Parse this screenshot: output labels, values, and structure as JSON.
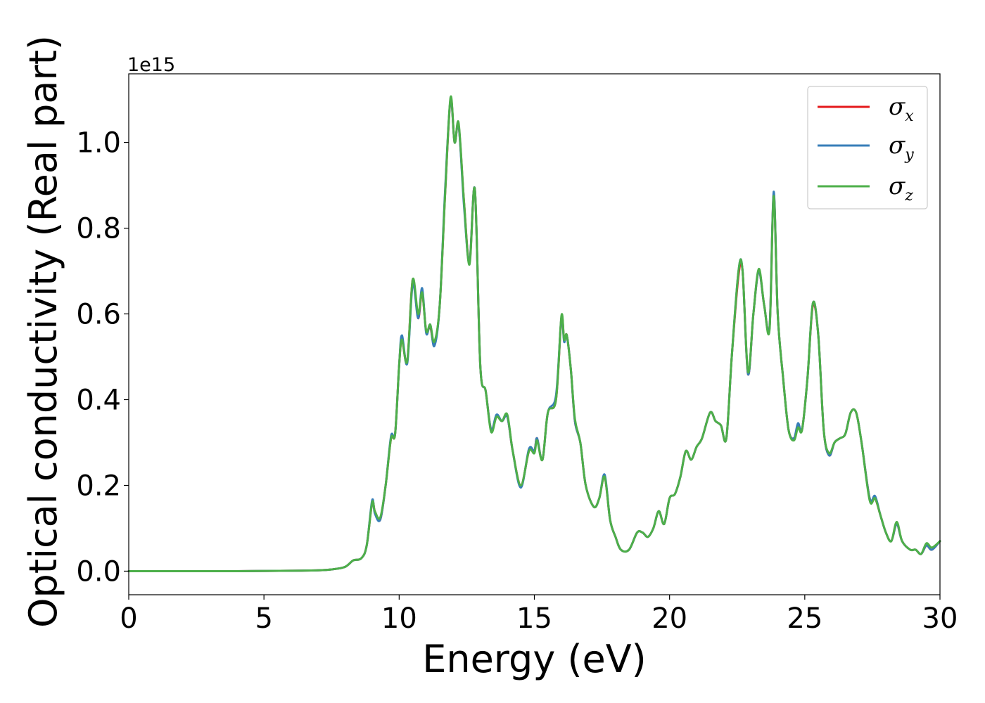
{
  "chart_data": {
    "type": "line",
    "xlabel": "Energy (eV)",
    "ylabel": "Optical conductivity (Real part)",
    "y_offset_label": "1e15",
    "xlim": [
      0,
      30
    ],
    "ylim": [
      -0.055,
      1.16
    ],
    "x_ticks": [
      0,
      5,
      10,
      15,
      20,
      25,
      30
    ],
    "x_tick_labels": [
      "0",
      "5",
      "10",
      "15",
      "20",
      "25",
      "30"
    ],
    "y_ticks": [
      0.0,
      0.2,
      0.4,
      0.6,
      0.8,
      1.0
    ],
    "y_tick_labels": [
      "0.0",
      "0.2",
      "0.4",
      "0.6",
      "0.8",
      "1.0"
    ],
    "grid": false,
    "legend_position": "top-right",
    "x": [
      0,
      2,
      4,
      6,
      7,
      7.5,
      8,
      8.3,
      8.6,
      8.8,
      9.0,
      9.1,
      9.3,
      9.5,
      9.7,
      9.85,
      10.0,
      10.1,
      10.3,
      10.5,
      10.7,
      10.85,
      11.0,
      11.15,
      11.3,
      11.5,
      11.7,
      11.9,
      12.05,
      12.2,
      12.4,
      12.6,
      12.8,
      13.0,
      13.2,
      13.4,
      13.6,
      13.8,
      14.0,
      14.2,
      14.5,
      14.8,
      15.0,
      15.1,
      15.3,
      15.5,
      15.8,
      16.0,
      16.1,
      16.2,
      16.35,
      16.5,
      16.7,
      16.9,
      17.2,
      17.4,
      17.6,
      17.8,
      18.0,
      18.2,
      18.5,
      18.8,
      19.0,
      19.2,
      19.4,
      19.6,
      19.8,
      20.0,
      20.2,
      20.4,
      20.6,
      20.8,
      21.0,
      21.2,
      21.5,
      21.7,
      21.9,
      22.1,
      22.3,
      22.55,
      22.7,
      22.9,
      23.1,
      23.3,
      23.5,
      23.7,
      23.85,
      24.0,
      24.2,
      24.4,
      24.6,
      24.75,
      24.9,
      25.1,
      25.3,
      25.5,
      25.7,
      25.9,
      26.1,
      26.3,
      26.5,
      26.7,
      26.9,
      27.1,
      27.4,
      27.6,
      27.8,
      28.0,
      28.2,
      28.4,
      28.6,
      28.9,
      29.1,
      29.3,
      29.5,
      29.7,
      30.0
    ],
    "series": [
      {
        "name": "σx",
        "color": "#e41a1c",
        "values": [
          0.0,
          0.0,
          0.0,
          0.001,
          0.002,
          0.004,
          0.01,
          0.025,
          0.03,
          0.06,
          0.16,
          0.14,
          0.12,
          0.2,
          0.31,
          0.32,
          0.48,
          0.54,
          0.49,
          0.68,
          0.59,
          0.65,
          0.56,
          0.57,
          0.53,
          0.62,
          0.88,
          1.1,
          1.0,
          1.04,
          0.86,
          0.72,
          0.89,
          0.48,
          0.42,
          0.33,
          0.36,
          0.35,
          0.36,
          0.28,
          0.2,
          0.28,
          0.28,
          0.31,
          0.26,
          0.37,
          0.4,
          0.59,
          0.54,
          0.55,
          0.47,
          0.35,
          0.3,
          0.2,
          0.15,
          0.17,
          0.22,
          0.12,
          0.08,
          0.05,
          0.05,
          0.09,
          0.09,
          0.08,
          0.1,
          0.14,
          0.11,
          0.17,
          0.18,
          0.22,
          0.28,
          0.26,
          0.29,
          0.31,
          0.37,
          0.35,
          0.34,
          0.31,
          0.5,
          0.69,
          0.7,
          0.46,
          0.6,
          0.7,
          0.62,
          0.57,
          0.88,
          0.6,
          0.45,
          0.33,
          0.31,
          0.34,
          0.33,
          0.45,
          0.62,
          0.55,
          0.33,
          0.27,
          0.3,
          0.31,
          0.32,
          0.37,
          0.37,
          0.3,
          0.17,
          0.17,
          0.13,
          0.09,
          0.07,
          0.11,
          0.07,
          0.05,
          0.05,
          0.04,
          0.06,
          0.05,
          0.07
        ]
      },
      {
        "name": "σy",
        "color": "#377eb8",
        "values": [
          0.0,
          0.0,
          0.0,
          0.001,
          0.002,
          0.004,
          0.01,
          0.025,
          0.03,
          0.06,
          0.165,
          0.135,
          0.12,
          0.2,
          0.315,
          0.32,
          0.48,
          0.55,
          0.485,
          0.67,
          0.59,
          0.66,
          0.555,
          0.575,
          0.525,
          0.62,
          0.89,
          1.1,
          1.0,
          1.04,
          0.85,
          0.72,
          0.89,
          0.48,
          0.42,
          0.33,
          0.365,
          0.35,
          0.36,
          0.28,
          0.195,
          0.285,
          0.28,
          0.31,
          0.26,
          0.37,
          0.41,
          0.59,
          0.535,
          0.55,
          0.47,
          0.35,
          0.3,
          0.2,
          0.15,
          0.17,
          0.225,
          0.12,
          0.08,
          0.05,
          0.05,
          0.09,
          0.09,
          0.08,
          0.1,
          0.14,
          0.11,
          0.17,
          0.18,
          0.22,
          0.28,
          0.26,
          0.29,
          0.31,
          0.37,
          0.35,
          0.34,
          0.31,
          0.5,
          0.7,
          0.7,
          0.46,
          0.6,
          0.7,
          0.62,
          0.57,
          0.885,
          0.6,
          0.45,
          0.33,
          0.31,
          0.345,
          0.33,
          0.45,
          0.625,
          0.55,
          0.33,
          0.27,
          0.3,
          0.31,
          0.32,
          0.37,
          0.37,
          0.3,
          0.17,
          0.175,
          0.13,
          0.09,
          0.07,
          0.11,
          0.07,
          0.05,
          0.05,
          0.04,
          0.06,
          0.05,
          0.07
        ]
      },
      {
        "name": "σz",
        "color": "#4daf4a",
        "values": [
          0.0,
          0.0,
          0.0,
          0.001,
          0.002,
          0.004,
          0.01,
          0.025,
          0.03,
          0.06,
          0.16,
          0.14,
          0.125,
          0.2,
          0.31,
          0.32,
          0.48,
          0.54,
          0.49,
          0.68,
          0.6,
          0.65,
          0.56,
          0.575,
          0.535,
          0.62,
          0.88,
          1.105,
          1.0,
          1.045,
          0.86,
          0.715,
          0.89,
          0.48,
          0.42,
          0.325,
          0.36,
          0.35,
          0.365,
          0.28,
          0.2,
          0.28,
          0.275,
          0.305,
          0.26,
          0.37,
          0.4,
          0.595,
          0.54,
          0.55,
          0.47,
          0.355,
          0.3,
          0.2,
          0.15,
          0.17,
          0.22,
          0.12,
          0.08,
          0.05,
          0.05,
          0.09,
          0.09,
          0.08,
          0.1,
          0.14,
          0.11,
          0.17,
          0.18,
          0.22,
          0.28,
          0.26,
          0.29,
          0.31,
          0.37,
          0.35,
          0.34,
          0.31,
          0.5,
          0.7,
          0.7,
          0.465,
          0.6,
          0.705,
          0.62,
          0.565,
          0.875,
          0.6,
          0.45,
          0.33,
          0.305,
          0.335,
          0.33,
          0.45,
          0.625,
          0.55,
          0.33,
          0.275,
          0.3,
          0.31,
          0.32,
          0.37,
          0.37,
          0.3,
          0.165,
          0.17,
          0.13,
          0.09,
          0.07,
          0.115,
          0.07,
          0.05,
          0.05,
          0.04,
          0.065,
          0.055,
          0.07
        ]
      }
    ]
  },
  "legend": {
    "items": [
      {
        "base": "σ",
        "sub": "x"
      },
      {
        "base": "σ",
        "sub": "y"
      },
      {
        "base": "σ",
        "sub": "z"
      }
    ]
  }
}
